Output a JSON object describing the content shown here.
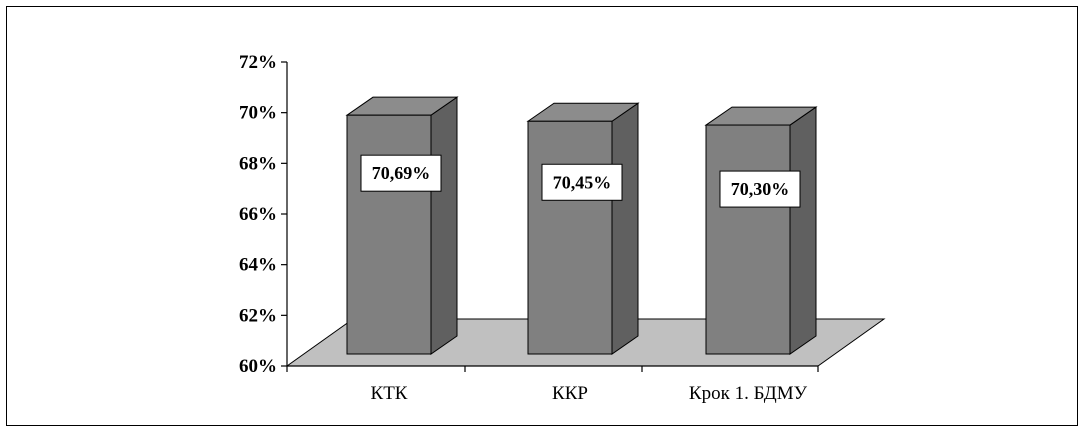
{
  "chart_data": {
    "type": "bar",
    "title": "",
    "xlabel": "",
    "ylabel": "",
    "categories": [
      "КТК",
      "ККР",
      "Крок 1. БДМУ"
    ],
    "values": [
      70.69,
      70.45,
      70.3
    ],
    "data_labels": [
      "70,69%",
      "70,45%",
      "70,30%"
    ],
    "ylim": [
      60,
      72
    ],
    "yticks": [
      60,
      62,
      64,
      66,
      68,
      70,
      72
    ],
    "ytick_labels": [
      "60%",
      "62%",
      "64%",
      "66%",
      "68%",
      "70%",
      "72%"
    ],
    "grid": false,
    "legend": "none",
    "three_d": true,
    "colors": {
      "bar_front": "#808080",
      "bar_top": "#8c8c8c",
      "bar_side": "#606060",
      "floor": "#c0c0c0",
      "label_box": "#ffffff",
      "outline": "#000000"
    }
  }
}
